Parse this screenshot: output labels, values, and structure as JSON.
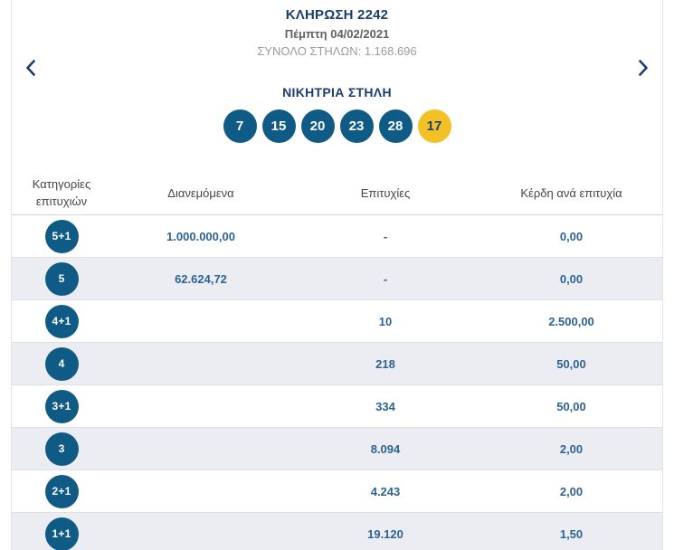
{
  "header": {
    "draw_title": "ΚΛΗΡΩΣΗ 2242",
    "draw_date": "Πέμπτη 04/02/2021",
    "total_columns": "ΣΥΝΟΛΟ ΣΤΗΛΩΝ: 1.168.696"
  },
  "nav": {
    "prev_icon": "chevron-left",
    "next_icon": "chevron-right"
  },
  "winning_column": {
    "title": "ΝΙΚΗΤΡΙΑ ΣΤΗΛΗ",
    "numbers": [
      "7",
      "15",
      "20",
      "23",
      "28"
    ],
    "joker": "17"
  },
  "table": {
    "columns": [
      "Κατηγορίες επιτυχιών",
      "Διανεμόμενα",
      "Επιτυχίες",
      "Κέρδη ανά επιτυχία"
    ],
    "rows": [
      {
        "category": "5+1",
        "distributed": "1.000.000,00",
        "winners": "-",
        "prize": "0,00"
      },
      {
        "category": "5",
        "distributed": "62.624,72",
        "winners": "-",
        "prize": "0,00"
      },
      {
        "category": "4+1",
        "distributed": "",
        "winners": "10",
        "prize": "2.500,00"
      },
      {
        "category": "4",
        "distributed": "",
        "winners": "218",
        "prize": "50,00"
      },
      {
        "category": "3+1",
        "distributed": "",
        "winners": "334",
        "prize": "50,00"
      },
      {
        "category": "3",
        "distributed": "",
        "winners": "8.094",
        "prize": "2,00"
      },
      {
        "category": "2+1",
        "distributed": "",
        "winners": "4.243",
        "prize": "2,00"
      },
      {
        "category": "1+1",
        "distributed": "",
        "winners": "19.120",
        "prize": "1,50"
      }
    ]
  },
  "colors": {
    "navy": "#1b3e6f",
    "ball_blue": "#0f5b85",
    "ball_yellow": "#f2c127",
    "value_blue": "#2d6394",
    "alt_row": "#ebedf3"
  }
}
